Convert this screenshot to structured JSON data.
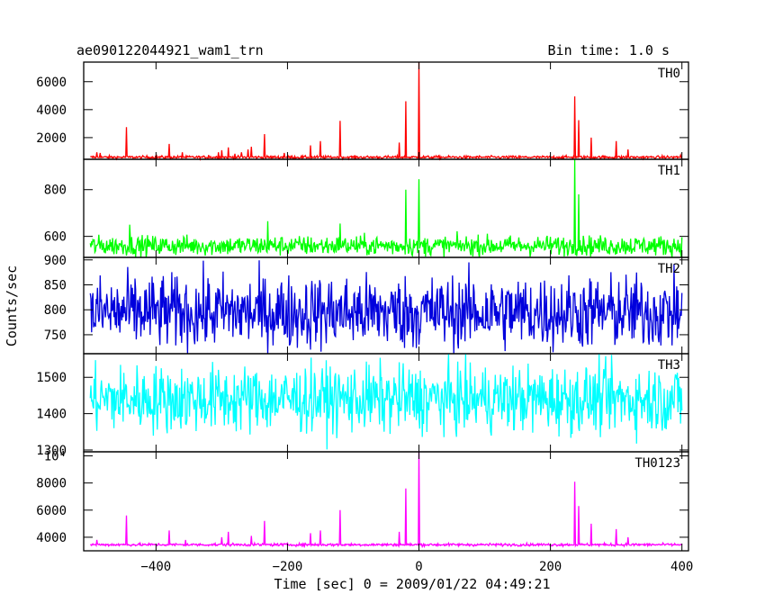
{
  "header": {
    "title": "ae090122044921_wam1_trn",
    "bin_time": "Bin time: 1.0 s"
  },
  "chart_data": {
    "type": "line",
    "title": "ae090122044921_wam1_trn",
    "xlabel": "Time [sec] 0 = 2009/01/22 04:49:21",
    "ylabel": "Counts/sec",
    "xlim": [
      -510,
      410
    ],
    "x_ticks": [
      -400,
      -200,
      0,
      200,
      400
    ],
    "x_tick_labels": [
      "−400",
      "−200",
      "0",
      "200",
      "400"
    ],
    "grid": false,
    "panels": [
      {
        "name": "TH0",
        "color": "#ff0000",
        "ylim": [
          450,
          7400
        ],
        "baseline": 600,
        "noise": 70,
        "y_ticks": [
          2000,
          4000,
          6000
        ],
        "y_tick_labels": [
          "2000",
          "4000",
          "6000"
        ],
        "spikes": [
          [
            -490,
            950
          ],
          [
            -485,
            900
          ],
          [
            -445,
            2750
          ],
          [
            -380,
            1550
          ],
          [
            -360,
            950
          ],
          [
            -320,
            750
          ],
          [
            -305,
            950
          ],
          [
            -300,
            1100
          ],
          [
            -290,
            1300
          ],
          [
            -280,
            850
          ],
          [
            -270,
            950
          ],
          [
            -260,
            1150
          ],
          [
            -255,
            1350
          ],
          [
            -235,
            2250
          ],
          [
            -205,
            900
          ],
          [
            -165,
            1450
          ],
          [
            -150,
            1750
          ],
          [
            -120,
            3200
          ],
          [
            -30,
            1650
          ],
          [
            -20,
            4600
          ],
          [
            0,
            7400
          ],
          [
            237,
            4950
          ],
          [
            243,
            3250
          ],
          [
            262,
            2000
          ],
          [
            300,
            1750
          ],
          [
            318,
            1150
          ],
          [
            398,
            750
          ]
        ]
      },
      {
        "name": "TH1",
        "color": "#00ff00",
        "ylim": [
          510,
          930
        ],
        "baseline": 560,
        "noise": 30,
        "y_ticks": [
          600,
          800
        ],
        "y_tick_labels": [
          "600",
          "800"
        ],
        "spikes": [
          [
            -440,
            650
          ],
          [
            -230,
            665
          ],
          [
            -120,
            655
          ],
          [
            -20,
            800
          ],
          [
            0,
            845
          ],
          [
            237,
            930
          ],
          [
            243,
            780
          ]
        ]
      },
      {
        "name": "TH2",
        "color": "#0000dd",
        "ylim": [
          712,
          905
        ],
        "baseline": 795,
        "noise": 52,
        "y_ticks": [
          750,
          800,
          850,
          900
        ],
        "y_tick_labels": [
          "750",
          "800",
          "850",
          "900"
        ],
        "spikes": []
      },
      {
        "name": "TH3",
        "color": "#00ffff",
        "ylim": [
          1295,
          1565
        ],
        "baseline": 1440,
        "noise": 65,
        "y_ticks": [
          1300,
          1400,
          1500
        ],
        "y_tick_labels": [
          "1300",
          "1400",
          "1500"
        ],
        "spikes": []
      },
      {
        "name": "TH0123",
        "color": "#ff00ff",
        "ylim": [
          3000,
          10300
        ],
        "baseline": 3450,
        "noise": 70,
        "y_ticks": [
          4000,
          6000,
          8000,
          10000
        ],
        "y_tick_labels": [
          "4000",
          "6000",
          "8000",
          "10⁴"
        ],
        "spikes": [
          [
            -490,
            3800
          ],
          [
            -445,
            5600
          ],
          [
            -380,
            4500
          ],
          [
            -355,
            3800
          ],
          [
            -300,
            4000
          ],
          [
            -290,
            4400
          ],
          [
            -255,
            4100
          ],
          [
            -235,
            5200
          ],
          [
            -165,
            4300
          ],
          [
            -150,
            4500
          ],
          [
            -120,
            6000
          ],
          [
            -30,
            4400
          ],
          [
            -20,
            7600
          ],
          [
            0,
            10300
          ],
          [
            237,
            8100
          ],
          [
            243,
            6300
          ],
          [
            262,
            5000
          ],
          [
            300,
            4600
          ],
          [
            318,
            4000
          ]
        ]
      }
    ]
  }
}
